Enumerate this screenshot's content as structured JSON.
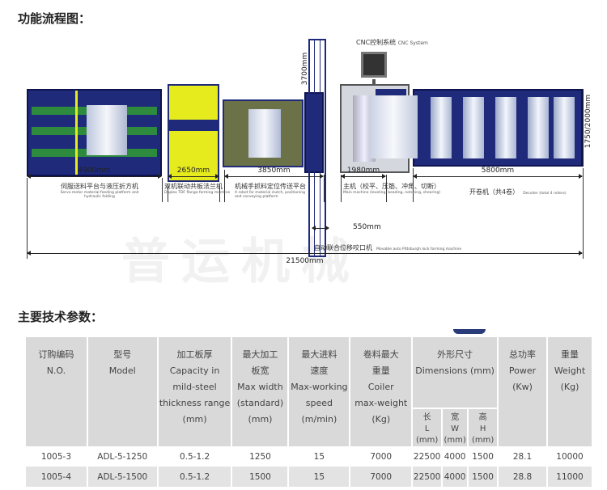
{
  "headings": {
    "flow": "功能流程图：",
    "params": "主要技术参数："
  },
  "diagram": {
    "cnc_label": "CNC控制系统",
    "cnc_label_en": "CNC System",
    "height_dim": "3700mm",
    "decoiler_height_dim": "1750/2000mm",
    "total_length": "21500mm",
    "gap_dim": "550mm",
    "sections": [
      {
        "length": "4900mm",
        "name_cn": "伺服送料平台与液压折方机",
        "name_en": "Servo motor material feeding platform and hydraulic folding"
      },
      {
        "length": "2650mm",
        "name_cn": "双机联动共板法兰机",
        "name_en": "Duplex TDF flange forming machine"
      },
      {
        "length": "3850mm",
        "name_cn": "机械手抓料定位传送平台",
        "name_en": "A robot for material clutch, positioning and conveying platform"
      },
      {
        "length": "1980mm",
        "name_cn": "主机（校平、压筋、冲角、切断）",
        "name_en": "Main machine (leveling, beading, notching, shearing)"
      },
      {
        "length": "5800mm",
        "name_cn": "开卷机（共4卷）",
        "name_en": "Decoiler (total 4 rollers)"
      }
    ],
    "lock_machine_cn": "自动联合位移咬口机",
    "lock_machine_en": "Movable auto Pittsburgh lock forming machine",
    "watermark": "普运机械",
    "colors": {
      "frame": "#1f2a7a",
      "stripe": "#2e8b3e",
      "flange": "#e6eb1e"
    }
  },
  "table": {
    "headers": [
      [
        "订购编码",
        "N.O."
      ],
      [
        "型号",
        "Model"
      ],
      [
        "加工板厚",
        "Capacity in",
        "mild-steel",
        "thickness range",
        "(mm)"
      ],
      [
        "最大加工",
        "板宽",
        "Max width",
        "(standard)",
        "(mm)"
      ],
      [
        "最大进料",
        "速度",
        "Max-working",
        "speed",
        "(m/min)"
      ],
      [
        "卷料最大",
        "重量",
        "Coiler",
        "max-weight",
        "(Kg)"
      ],
      [
        "外形尺寸",
        "Dimensions (mm)"
      ],
      [
        "总功率",
        "Power",
        "(Kw)"
      ],
      [
        "重量",
        "Weight",
        "(Kg)"
      ]
    ],
    "dim_sub": [
      [
        "长",
        "L",
        "(mm)"
      ],
      [
        "宽",
        "W",
        "(mm)"
      ],
      [
        "高",
        "H",
        "(mm)"
      ]
    ],
    "rows": [
      [
        "1005-3",
        "ADL-5-1250",
        "0.5-1.2",
        "1250",
        "15",
        "7000",
        "22500",
        "4000",
        "1500",
        "28.1",
        "10000"
      ],
      [
        "1005-4",
        "ADL-5-1500",
        "0.5-1.2",
        "1500",
        "15",
        "7000",
        "22500",
        "4000",
        "1500",
        "28.8",
        "11000"
      ]
    ]
  }
}
